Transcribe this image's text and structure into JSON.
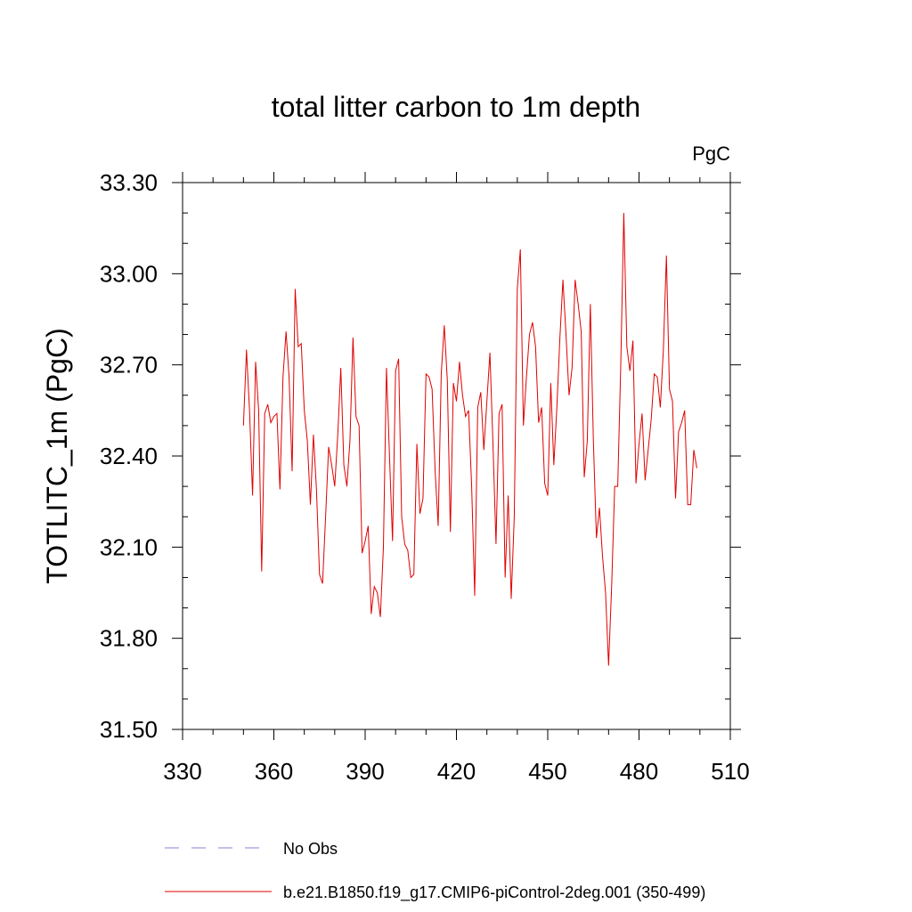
{
  "chart_data": {
    "type": "line",
    "title": "total litter carbon to 1m depth",
    "units": "PgC",
    "ylabel": "TOTLITC_1m  (PgC)",
    "xlabel": "",
    "xlim": [
      330,
      510
    ],
    "ylim": [
      31.5,
      33.3
    ],
    "x_ticks": [
      "330",
      "360",
      "390",
      "420",
      "450",
      "480",
      "510"
    ],
    "y_ticks": [
      "31.50",
      "31.80",
      "32.10",
      "32.40",
      "32.70",
      "33.00",
      "33.30"
    ],
    "legend": [
      {
        "label": "No Obs",
        "color": "#8a7fd0",
        "style": "dashed"
      },
      {
        "label": "b.e21.B1850.f19_g17.CMIP6-piControl-2deg.001 (350-499)",
        "color": "#e00000",
        "style": "solid"
      }
    ],
    "series": [
      {
        "name": "b.e21.B1850.f19_g17.CMIP6-piControl-2deg.001 (350-499)",
        "color": "#e00000",
        "x_start": 350,
        "values": [
          32.5,
          32.75,
          32.55,
          32.27,
          32.71,
          32.55,
          32.02,
          32.54,
          32.57,
          32.51,
          32.53,
          32.54,
          32.29,
          32.66,
          32.81,
          32.66,
          32.35,
          32.95,
          32.76,
          32.77,
          32.55,
          32.45,
          32.24,
          32.47,
          32.29,
          32.01,
          31.98,
          32.2,
          32.43,
          32.37,
          32.3,
          32.47,
          32.69,
          32.37,
          32.3,
          32.45,
          32.79,
          32.53,
          32.5,
          32.08,
          32.12,
          32.17,
          31.88,
          31.97,
          31.95,
          31.87,
          32.1,
          32.69,
          32.4,
          32.12,
          32.68,
          32.72,
          32.2,
          32.11,
          32.09,
          32.0,
          32.01,
          32.44,
          32.21,
          32.26,
          32.67,
          32.66,
          32.62,
          32.35,
          32.17,
          32.67,
          32.83,
          32.65,
          32.15,
          32.64,
          32.58,
          32.71,
          32.6,
          32.53,
          32.55,
          32.3,
          31.94,
          32.56,
          32.61,
          32.42,
          32.58,
          32.74,
          32.44,
          32.11,
          32.54,
          32.57,
          32.0,
          32.27,
          31.93,
          32.2,
          32.95,
          33.08,
          32.5,
          32.66,
          32.8,
          32.84,
          32.76,
          32.51,
          32.56,
          32.31,
          32.27,
          32.64,
          32.37,
          32.56,
          32.79,
          32.98,
          32.8,
          32.6,
          32.69,
          32.98,
          32.9,
          32.81,
          32.33,
          32.45,
          32.9,
          32.45,
          32.13,
          32.23,
          32.07,
          31.95,
          31.71,
          31.97,
          32.3,
          32.3,
          32.7,
          33.2,
          32.76,
          32.68,
          32.78,
          32.31,
          32.44,
          32.54,
          32.32,
          32.42,
          32.52,
          32.67,
          32.66,
          32.56,
          32.75,
          33.06,
          32.62,
          32.58,
          32.26,
          32.48,
          32.51,
          32.55,
          32.24,
          32.24,
          32.42,
          32.36
        ]
      }
    ]
  }
}
